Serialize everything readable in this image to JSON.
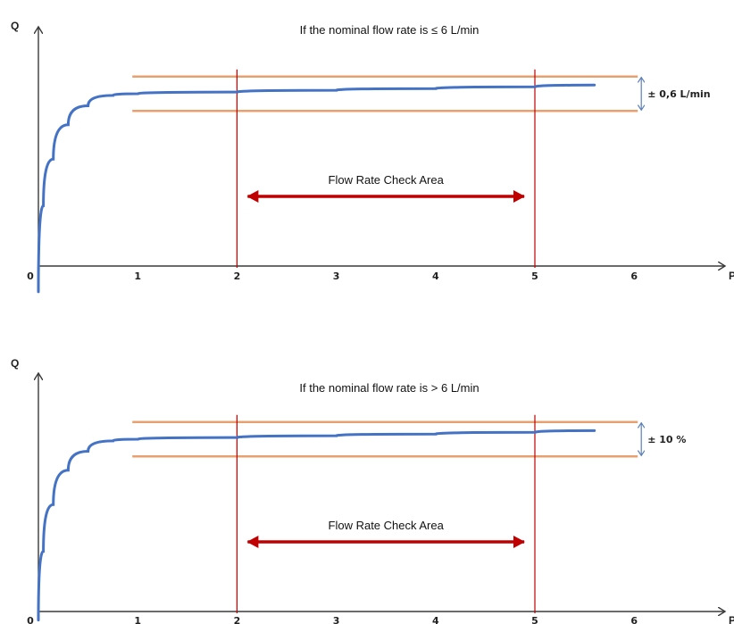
{
  "chart_data": [
    {
      "type": "line",
      "title": "If the nominal flow rate is ≤ 6 L/min",
      "ylabel": "Q",
      "xlabel": "P",
      "x_ticks": [
        "0",
        "1",
        "2",
        "3",
        "4",
        "5",
        "6"
      ],
      "xlim": [
        0,
        6.8
      ],
      "ylim": [
        0,
        1.45
      ],
      "series": [
        {
          "values_xy": [
            [
              0,
              -0.15
            ],
            [
              0.05,
              0.35
            ],
            [
              0.15,
              0.62
            ],
            [
              0.3,
              0.82
            ],
            [
              0.5,
              0.93
            ],
            [
              0.75,
              0.99
            ],
            [
              1,
              1.0
            ],
            [
              2,
              1.01
            ],
            [
              3,
              1.02
            ],
            [
              4,
              1.03
            ],
            [
              5,
              1.04
            ],
            [
              5.6,
              1.05
            ]
          ]
        }
      ],
      "upper_limit": 1.1,
      "lower_limit": 0.9,
      "limit_x_range": [
        1,
        6
      ],
      "check_area": {
        "x_start": 2,
        "x_end": 5,
        "label": "Flow Rate Check Area"
      },
      "tolerance_label": "± 0,6 L/min",
      "colors": {
        "curve": "#4472c4",
        "limits": "#e8a070",
        "check_area": "#c00000",
        "axis": "#3a3a3a"
      }
    },
    {
      "type": "line",
      "title": "If the nominal flow rate is > 6 L/min",
      "ylabel": "Q",
      "xlabel": "P",
      "x_ticks": [
        "0",
        "1",
        "2",
        "3",
        "4",
        "5",
        "6"
      ],
      "xlim": [
        0,
        6.8
      ],
      "ylim": [
        0,
        1.45
      ],
      "series": [
        {
          "values_xy": [
            [
              0,
              -0.05
            ],
            [
              0.05,
              0.35
            ],
            [
              0.15,
              0.62
            ],
            [
              0.3,
              0.82
            ],
            [
              0.5,
              0.93
            ],
            [
              0.75,
              0.99
            ],
            [
              1,
              1.0
            ],
            [
              2,
              1.01
            ],
            [
              3,
              1.02
            ],
            [
              4,
              1.03
            ],
            [
              5,
              1.04
            ],
            [
              5.6,
              1.05
            ]
          ]
        }
      ],
      "upper_limit": 1.1,
      "lower_limit": 0.9,
      "limit_x_range": [
        1,
        6
      ],
      "check_area": {
        "x_start": 2,
        "x_end": 5,
        "label": "Flow Rate Check Area"
      },
      "tolerance_label": "± 10 %",
      "colors": {
        "curve": "#4472c4",
        "limits": "#e8a070",
        "check_area": "#c00000",
        "axis": "#3a3a3a"
      }
    }
  ]
}
